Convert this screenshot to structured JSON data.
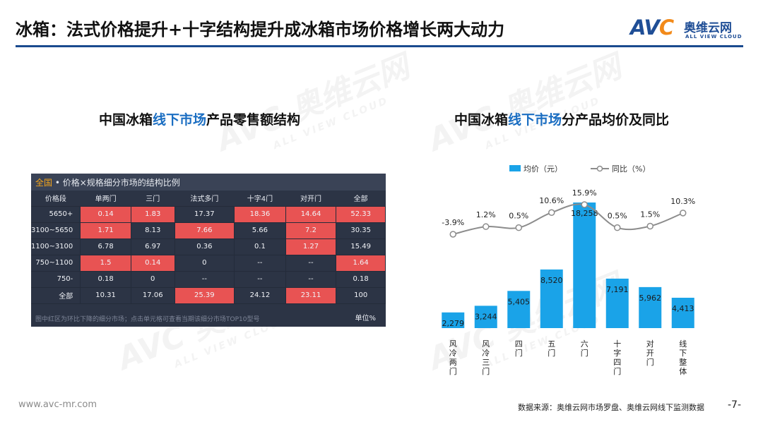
{
  "header": {
    "title": "冰箱：法式价格提升+十字结构提升成冰箱市场价格增长两大动力",
    "logo_mark": "AVC",
    "logo_cn": "奥维云网",
    "logo_en": "ALL VIEW CLOUD",
    "brand_color": "#1f4e96",
    "accent_color": "#f28a1a"
  },
  "left_section": {
    "title_pre": "中国冰箱",
    "title_hl": "线下市场",
    "title_post": "产品零售额结构"
  },
  "right_section": {
    "title_pre": "中国冰箱",
    "title_hl": "线下市场",
    "title_post": "分产品均价及同比"
  },
  "table_panel": {
    "tag": "全国",
    "caption": " • 价格×规格细分市场的结构比例",
    "columns": [
      "价格段",
      "单两门",
      "三门",
      "法式多门",
      "十字4门",
      "对开门",
      "全部"
    ],
    "rows": [
      {
        "label": "5650+",
        "cells": [
          "0.14",
          "1.83",
          "17.37",
          "18.36",
          "14.64",
          "52.33"
        ],
        "red": [
          true,
          true,
          false,
          true,
          true,
          true
        ]
      },
      {
        "label": "3100~5650",
        "cells": [
          "1.71",
          "8.13",
          "7.66",
          "5.66",
          "7.2",
          "30.35"
        ],
        "red": [
          true,
          false,
          true,
          false,
          true,
          false
        ]
      },
      {
        "label": "1100~3100",
        "cells": [
          "6.78",
          "6.97",
          "0.36",
          "0.1",
          "1.27",
          "15.49"
        ],
        "red": [
          false,
          false,
          false,
          false,
          true,
          false
        ]
      },
      {
        "label": "750~1100",
        "cells": [
          "1.5",
          "0.14",
          "0",
          "--",
          "--",
          "1.64"
        ],
        "red": [
          true,
          true,
          false,
          false,
          false,
          true
        ]
      },
      {
        "label": "750-",
        "cells": [
          "0.18",
          "0",
          "--",
          "--",
          "--",
          "0.18"
        ],
        "red": [
          false,
          false,
          false,
          false,
          false,
          false
        ]
      },
      {
        "label": "全部",
        "cells": [
          "10.31",
          "17.06",
          "25.39",
          "24.12",
          "23.11",
          "100"
        ],
        "red": [
          false,
          false,
          true,
          false,
          true,
          false
        ]
      }
    ],
    "footnote": "图中红区为环比下降的细分市场；点击单元格可查看当期该细分市场TOP10型号",
    "unit": "单位%",
    "highlight_color": "#e85353",
    "panel_color": "#2c3445"
  },
  "chart_data": {
    "type": "bar",
    "categories": [
      "风冷两门",
      "风冷三门",
      "四门",
      "五门",
      "六门",
      "十字四门",
      "对开门",
      "线下整体"
    ],
    "series": [
      {
        "name": "均价（元）",
        "type": "bar",
        "values": [
          2279,
          3244,
          5405,
          8520,
          18258,
          7191,
          5962,
          4413
        ],
        "labels": [
          "2,279",
          "3,244",
          "5,405",
          "8,520",
          "18,258",
          "7,191",
          "5,962",
          "4,413"
        ],
        "color": "#1aa3e8"
      },
      {
        "name": "同比（%）",
        "type": "line",
        "values": [
          -3.9,
          1.2,
          0.5,
          10.6,
          15.9,
          0.5,
          1.5,
          10.3
        ],
        "labels": [
          "-3.9%",
          "1.2%",
          "0.5%",
          "10.6%",
          "15.9%",
          "0.5%",
          "1.5%",
          "10.3%"
        ],
        "color": "#8c8c8c"
      }
    ],
    "legend_position": "top-center",
    "grid": false
  },
  "footer": {
    "url": "www.avc-mr.com",
    "source": "数据来源：奥维云网市场罗盘、奥维云网线下监测数据",
    "page": "-7-"
  }
}
